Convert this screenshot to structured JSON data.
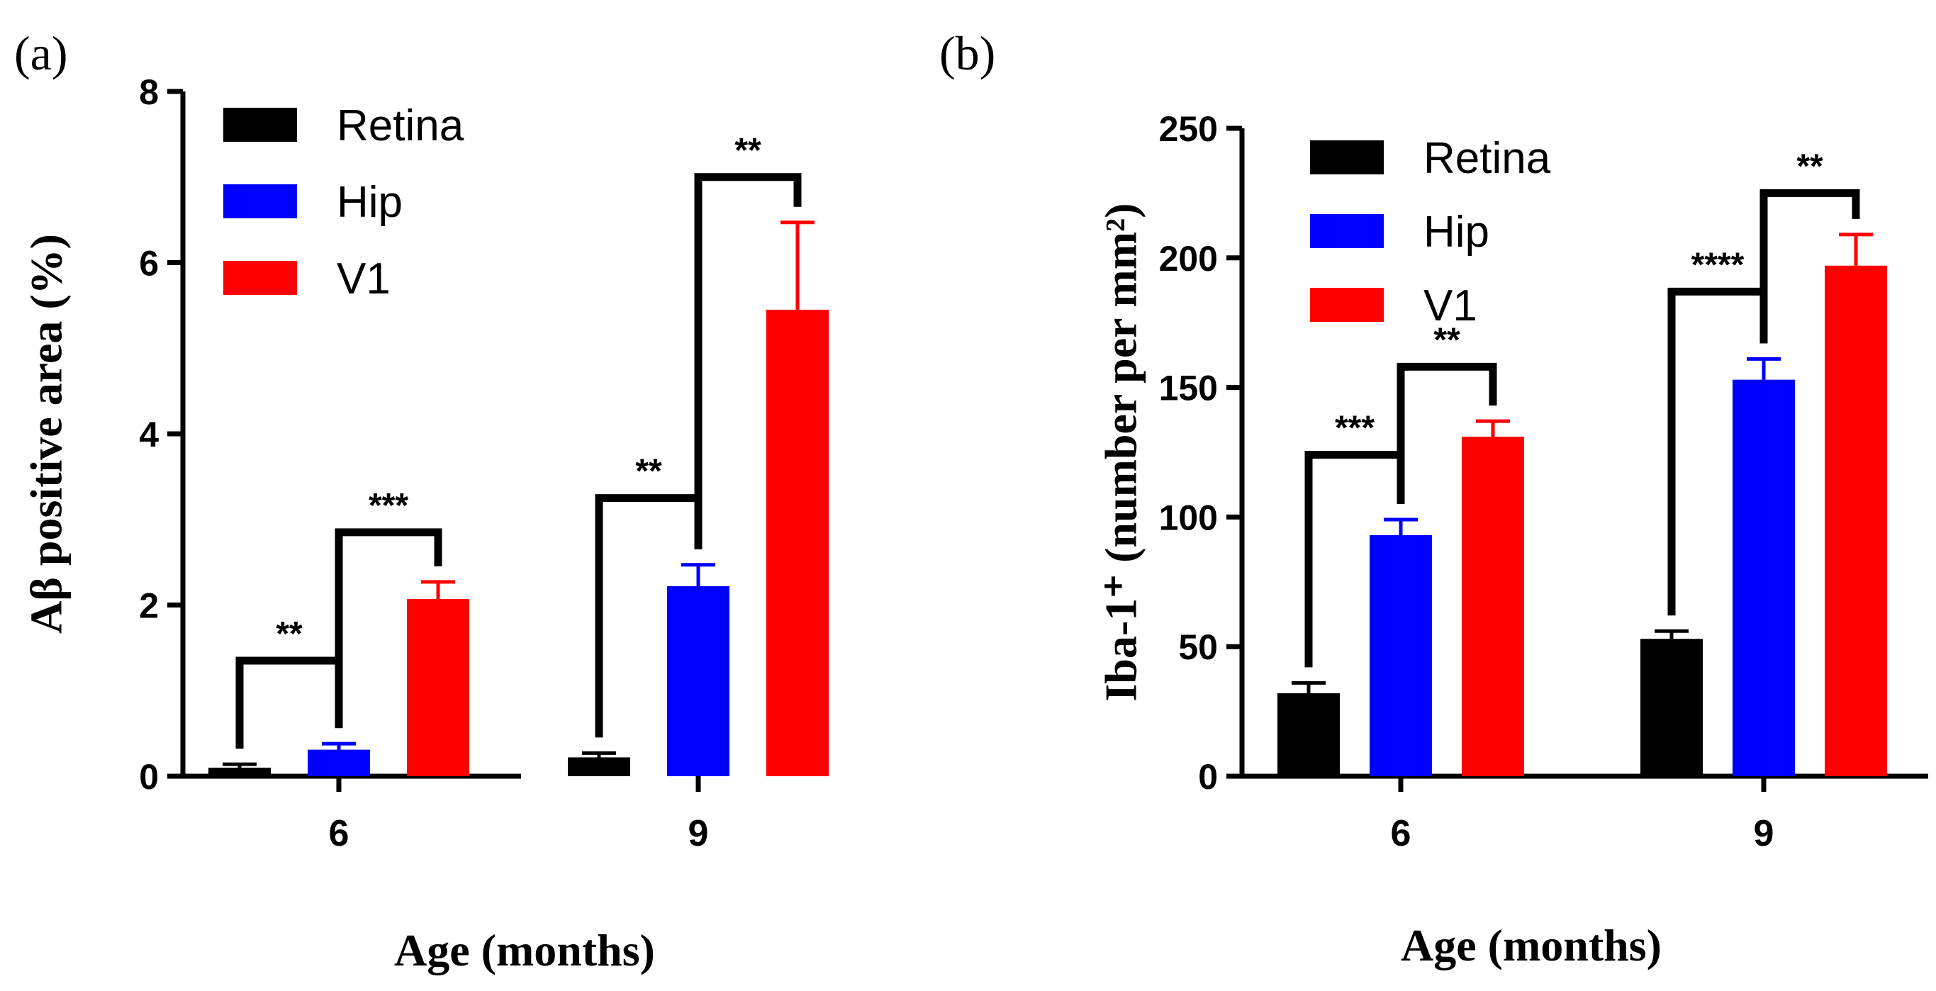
{
  "chart_data": [
    {
      "panel_label": "(a)",
      "type": "bar",
      "categories": [
        "6",
        "9"
      ],
      "series": [
        {
          "name": "Retina",
          "color": "#000000",
          "values": [
            0.1,
            0.22
          ],
          "errors": [
            0.04,
            0.05
          ]
        },
        {
          "name": "Hip",
          "color": "#0000ff",
          "values": [
            0.31,
            2.22
          ],
          "errors": [
            0.07,
            0.25
          ]
        },
        {
          "name": "V1",
          "color": "#ff0000",
          "values": [
            2.07,
            5.45
          ],
          "errors": [
            0.2,
            1.02
          ]
        }
      ],
      "xlabel": "Age (months)",
      "ylabel": "Aβ positive area (%)",
      "ylim": [
        0,
        8
      ],
      "yticks": [
        "0",
        "2",
        "4",
        "6",
        "8"
      ],
      "legend": "top-left",
      "significance": [
        {
          "category": 0,
          "from": 0,
          "to": 1,
          "label": "**",
          "bracket_level": 1.35
        },
        {
          "category": 0,
          "from": 1,
          "to": 2,
          "label": "***",
          "bracket_level": 2.85
        },
        {
          "category": 1,
          "from": 0,
          "to": 1,
          "label": "**",
          "bracket_level": 3.25
        },
        {
          "category": 1,
          "from": 1,
          "to": 2,
          "label": "**",
          "bracket_level": 7.0
        }
      ]
    },
    {
      "panel_label": "(b)",
      "type": "bar",
      "categories": [
        "6",
        "9"
      ],
      "series": [
        {
          "name": "Retina",
          "color": "#000000",
          "values": [
            32,
            53
          ],
          "errors": [
            4,
            3
          ]
        },
        {
          "name": "Hip",
          "color": "#0000ff",
          "values": [
            93,
            153
          ],
          "errors": [
            6,
            8
          ]
        },
        {
          "name": "V1",
          "color": "#ff0000",
          "values": [
            131,
            197
          ],
          "errors": [
            6,
            12
          ]
        }
      ],
      "xlabel": "Age (months)",
      "ylabel": "Iba-1⁺ (number per mm²)",
      "ylim": [
        0,
        250
      ],
      "yticks": [
        "0",
        "50",
        "100",
        "150",
        "200",
        "250"
      ],
      "legend": "top-left",
      "significance": [
        {
          "category": 0,
          "from": 0,
          "to": 1,
          "label": "***",
          "bracket_level": 124
        },
        {
          "category": 0,
          "from": 1,
          "to": 2,
          "label": "**",
          "bracket_level": 158
        },
        {
          "category": 1,
          "from": 0,
          "to": 1,
          "label": "****",
          "bracket_level": 187
        },
        {
          "category": 1,
          "from": 1,
          "to": 2,
          "label": "**",
          "bracket_level": 225
        }
      ]
    }
  ]
}
